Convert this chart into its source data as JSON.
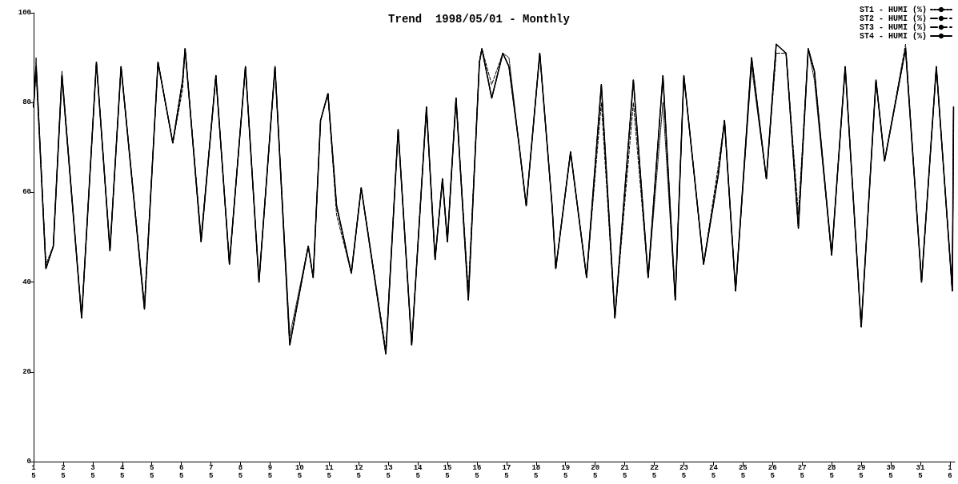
{
  "chart_data": {
    "type": "line",
    "title": "Trend  1998/05/01 - Monthly",
    "x": [
      "1998-05-01T00:00",
      "1998-05-01T02:00",
      "1998-05-01T10:00",
      "1998-05-01T16:00",
      "1998-05-01T23:00",
      "1998-05-02T15:00",
      "1998-05-03T03:00",
      "1998-05-03T14:00",
      "1998-05-03T23:00",
      "1998-05-04T18:00",
      "1998-05-05T05:00",
      "1998-05-05T17:00",
      "1998-05-06T01:00",
      "1998-05-06T03:00",
      "1998-05-06T16:00",
      "1998-05-07T04:00",
      "1998-05-07T15:00",
      "1998-05-08T04:00",
      "1998-05-08T15:00",
      "1998-05-09T04:00",
      "1998-05-09T16:00",
      "1998-05-10T07:00",
      "1998-05-10T11:00",
      "1998-05-10T17:00",
      "1998-05-10T23:00",
      "1998-05-11T06:00",
      "1998-05-11T18:00",
      "1998-05-12T02:00",
      "1998-05-12T22:00",
      "1998-05-13T08:00",
      "1998-05-13T19:00",
      "1998-05-14T07:00",
      "1998-05-14T14:00",
      "1998-05-14T20:00",
      "1998-05-15T00:00",
      "1998-05-15T07:00",
      "1998-05-15T17:00",
      "1998-05-16T02:00",
      "1998-05-16T04:00",
      "1998-05-16T12:00",
      "1998-05-16T21:00",
      "1998-05-17T02:00",
      "1998-05-17T10:00",
      "1998-05-17T16:00",
      "1998-05-18T03:00",
      "1998-05-18T13:00",
      "1998-05-18T16:00",
      "1998-05-19T04:00",
      "1998-05-19T17:00",
      "1998-05-20T05:00",
      "1998-05-20T16:00",
      "1998-05-21T07:00",
      "1998-05-21T19:00",
      "1998-05-22T07:00",
      "1998-05-22T17:00",
      "1998-05-23T00:00",
      "1998-05-23T16:00",
      "1998-05-24T04:00",
      "1998-05-24T09:00",
      "1998-05-24T18:00",
      "1998-05-25T07:00",
      "1998-05-25T19:00",
      "1998-05-26T03:00",
      "1998-05-26T11:00",
      "1998-05-26T21:00",
      "1998-05-27T05:00",
      "1998-05-27T10:00",
      "1998-05-28T00:00",
      "1998-05-28T11:00",
      "1998-05-29T00:00",
      "1998-05-29T12:00",
      "1998-05-29T19:00",
      "1998-05-30T12:00",
      "1998-05-31T01:00",
      "1998-05-31T13:00",
      "1998-06-01T02:00",
      "1998-06-01T03:00"
    ],
    "series": [
      {
        "name": "ST1 - HUMI (%)",
        "color": "#000000",
        "line_style": "dotted",
        "values": [
          79,
          90,
          43,
          48,
          87,
          32,
          89,
          47,
          88,
          34,
          89,
          71,
          85,
          92,
          49,
          86,
          44,
          88,
          40,
          88,
          28,
          48,
          41,
          76,
          82,
          57,
          42,
          61,
          24,
          74,
          26,
          79,
          45,
          63,
          49,
          81,
          36,
          89,
          92,
          81,
          91,
          90,
          71,
          57,
          91,
          57,
          43,
          69,
          41,
          84,
          32,
          85,
          41,
          80,
          36,
          86,
          44,
          64,
          76,
          38,
          88,
          63,
          93,
          91,
          52,
          92,
          85,
          46,
          88,
          30,
          85,
          67,
          92,
          40,
          88,
          38,
          79
        ]
      },
      {
        "name": "ST2 - HUMI (%)",
        "color": "#000000",
        "line_style": "dashed",
        "values": [
          79,
          88,
          43,
          48,
          86,
          32,
          89,
          47,
          88,
          35,
          89,
          71,
          83,
          92,
          49,
          86,
          44,
          88,
          40,
          88,
          26,
          48,
          41,
          76,
          82,
          55,
          42,
          61,
          24,
          74,
          26,
          79,
          45,
          63,
          49,
          81,
          38,
          89,
          92,
          81,
          91,
          88,
          71,
          57,
          91,
          57,
          43,
          69,
          41,
          80,
          32,
          80,
          41,
          86,
          36,
          86,
          44,
          64,
          76,
          38,
          90,
          63,
          91,
          91,
          52,
          92,
          87,
          46,
          88,
          30,
          85,
          67,
          92,
          40,
          88,
          38,
          79
        ]
      },
      {
        "name": "ST3 - HUMI (%)",
        "color": "#000000",
        "line_style": "dashed",
        "values": [
          79,
          88,
          44,
          48,
          86,
          32,
          89,
          47,
          88,
          34,
          89,
          71,
          85,
          92,
          50,
          86,
          44,
          88,
          40,
          88,
          26,
          48,
          41,
          76,
          82,
          57,
          42,
          61,
          25,
          74,
          26,
          79,
          45,
          63,
          49,
          81,
          36,
          89,
          92,
          84,
          91,
          88,
          71,
          57,
          91,
          57,
          43,
          69,
          41,
          84,
          32,
          85,
          41,
          86,
          36,
          86,
          44,
          66,
          76,
          38,
          90,
          63,
          93,
          91,
          55,
          92,
          87,
          46,
          88,
          30,
          85,
          67,
          93,
          40,
          88,
          38,
          79
        ]
      },
      {
        "name": "ST4 - HUMI (%)",
        "color": "#000000",
        "line_style": "solid",
        "values": [
          79,
          88,
          43,
          48,
          86,
          32,
          89,
          47,
          88,
          34,
          89,
          71,
          85,
          92,
          49,
          86,
          44,
          88,
          40,
          88,
          26,
          48,
          41,
          76,
          82,
          57,
          42,
          61,
          24,
          74,
          26,
          79,
          45,
          63,
          49,
          81,
          36,
          89,
          92,
          81,
          91,
          88,
          71,
          57,
          91,
          57,
          43,
          69,
          41,
          84,
          32,
          85,
          41,
          86,
          36,
          86,
          44,
          64,
          76,
          38,
          90,
          63,
          93,
          91,
          52,
          92,
          87,
          46,
          88,
          30,
          85,
          67,
          92,
          40,
          88,
          38,
          79
        ]
      }
    ],
    "xlim": [
      "1998-05-01T00:00",
      "1998-06-01T04:00"
    ],
    "xticks": [
      {
        "value": "1998-05-01T00:00",
        "label": "1\n5"
      },
      {
        "value": "1998-05-02T00:00",
        "label": "2\n5"
      },
      {
        "value": "1998-05-03T00:00",
        "label": "3\n5"
      },
      {
        "value": "1998-05-04T00:00",
        "label": "4\n5"
      },
      {
        "value": "1998-05-05T00:00",
        "label": "5\n5"
      },
      {
        "value": "1998-05-06T00:00",
        "label": "6\n5"
      },
      {
        "value": "1998-05-07T00:00",
        "label": "7\n5"
      },
      {
        "value": "1998-05-08T00:00",
        "label": "8\n5"
      },
      {
        "value": "1998-05-09T00:00",
        "label": "9\n5"
      },
      {
        "value": "1998-05-10T00:00",
        "label": "10\n5"
      },
      {
        "value": "1998-05-11T00:00",
        "label": "11\n5"
      },
      {
        "value": "1998-05-12T00:00",
        "label": "12\n5"
      },
      {
        "value": "1998-05-13T00:00",
        "label": "13\n5"
      },
      {
        "value": "1998-05-14T00:00",
        "label": "14\n5"
      },
      {
        "value": "1998-05-15T00:00",
        "label": "15\n5"
      },
      {
        "value": "1998-05-16T00:00",
        "label": "16\n5"
      },
      {
        "value": "1998-05-17T00:00",
        "label": "17\n5"
      },
      {
        "value": "1998-05-18T00:00",
        "label": "18\n5"
      },
      {
        "value": "1998-05-19T00:00",
        "label": "19\n5"
      },
      {
        "value": "1998-05-20T00:00",
        "label": "20\n5"
      },
      {
        "value": "1998-05-21T00:00",
        "label": "21\n5"
      },
      {
        "value": "1998-05-22T00:00",
        "label": "22\n5"
      },
      {
        "value": "1998-05-23T00:00",
        "label": "23\n5"
      },
      {
        "value": "1998-05-24T00:00",
        "label": "24\n5"
      },
      {
        "value": "1998-05-25T00:00",
        "label": "25\n5"
      },
      {
        "value": "1998-05-26T00:00",
        "label": "26\n5"
      },
      {
        "value": "1998-05-27T00:00",
        "label": "27\n5"
      },
      {
        "value": "1998-05-28T00:00",
        "label": "28\n5"
      },
      {
        "value": "1998-05-29T00:00",
        "label": "29\n5"
      },
      {
        "value": "1998-05-30T00:00",
        "label": "30\n5"
      },
      {
        "value": "1998-05-31T00:00",
        "label": "31\n5"
      },
      {
        "value": "1998-06-01T00:00",
        "label": "1\n6"
      }
    ],
    "ylim": [
      0,
      100
    ],
    "yticks": [
      0,
      20,
      40,
      60,
      80,
      100
    ],
    "grid": false,
    "legend": "top right",
    "marker": "none"
  }
}
